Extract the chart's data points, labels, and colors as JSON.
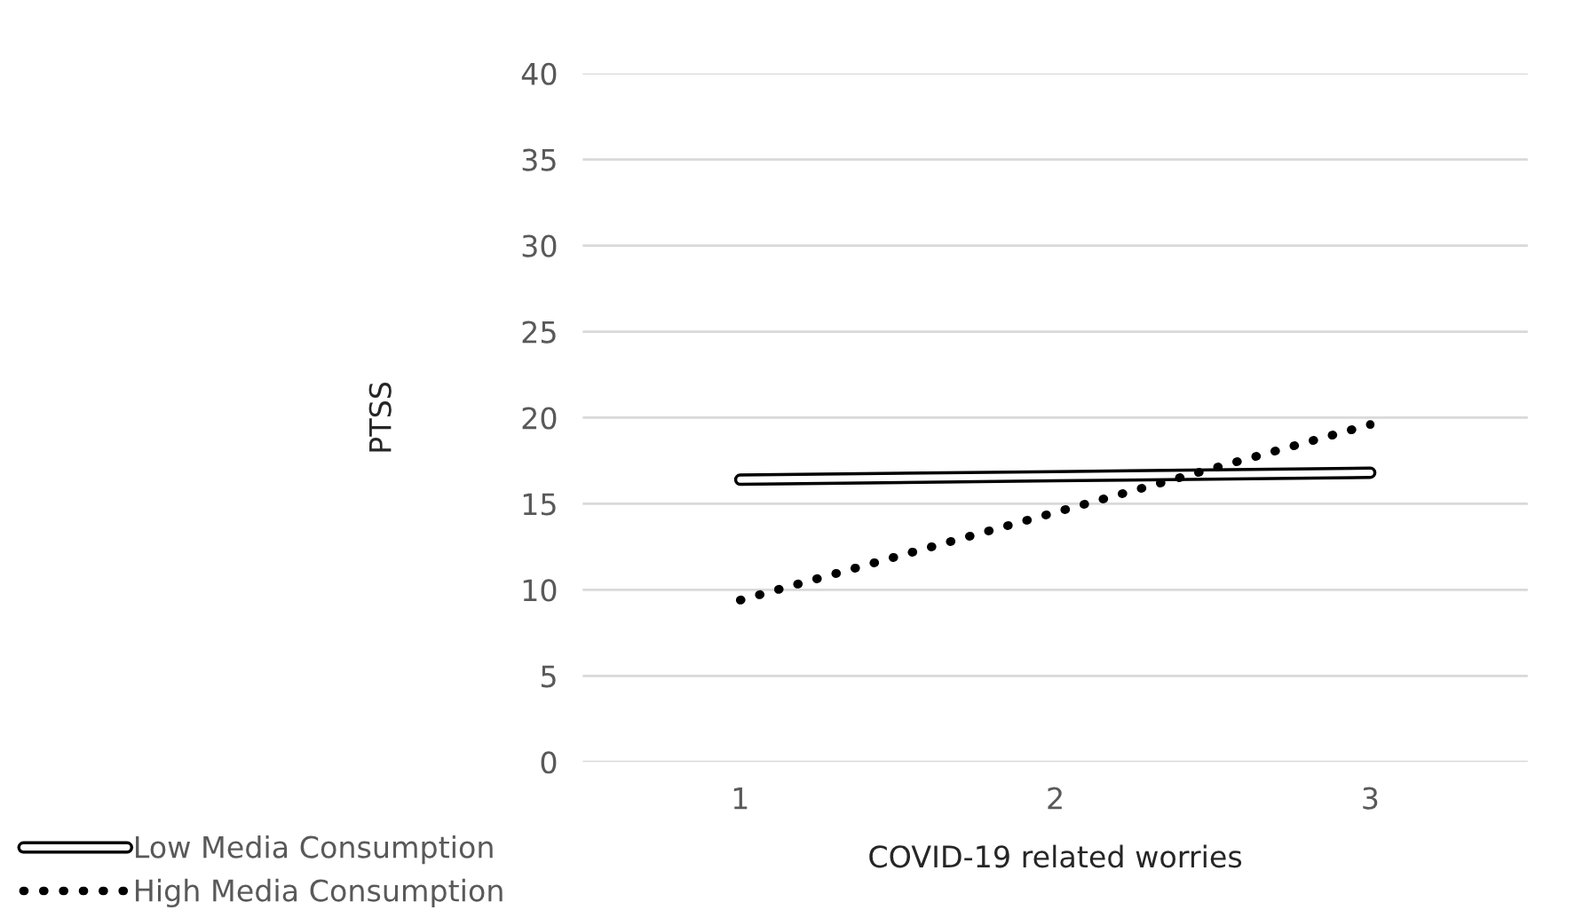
{
  "chart_data": {
    "type": "line",
    "xlabel": "COVID-19 related worries",
    "ylabel": "PTSS",
    "categories": [
      "1",
      "2",
      "3"
    ],
    "series": [
      {
        "name": "Low Media Consumption",
        "color": "#000000",
        "values": [
          16.4,
          16.6,
          16.8
        ],
        "line_style": "solid"
      },
      {
        "name": "High Media Consumption",
        "color": "#000000",
        "values": [
          9.4,
          14.5,
          19.6
        ],
        "line_style": "dotted"
      }
    ],
    "ylim": [
      0,
      40
    ],
    "yticks": [
      0,
      5,
      10,
      15,
      20,
      25,
      30,
      35,
      40
    ],
    "grid": "y",
    "legend": "bottom left"
  }
}
